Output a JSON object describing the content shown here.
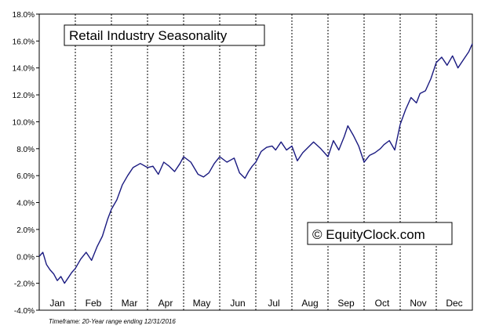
{
  "chart_data": {
    "type": "line",
    "title": "Retail Industry Seasonality",
    "watermark": "© EquityClock.com",
    "footnote": "Timeframe: 20-Year range ending 12/31/2016",
    "xlabel": "",
    "ylabel": "",
    "x_domain_months": [
      0,
      12
    ],
    "categories": [
      "Jan",
      "Feb",
      "Mar",
      "Apr",
      "May",
      "Jun",
      "Jul",
      "Aug",
      "Sep",
      "Oct",
      "Nov",
      "Dec"
    ],
    "ylim": [
      -4,
      18
    ],
    "yticks": [
      -4,
      -2,
      0,
      2,
      4,
      6,
      8,
      10,
      12,
      14,
      16,
      18
    ],
    "ytick_labels": [
      "-4.0%",
      "-2.0%",
      "0.0%",
      "2.0%",
      "4.0%",
      "6.0%",
      "8.0%",
      "10.0%",
      "12.0%",
      "14.0%",
      "16.0%",
      "18.0%"
    ],
    "grid": {
      "vertical_month_lines": true,
      "horizontal": false
    },
    "line_color": "#1a1a80",
    "series": [
      {
        "x": [
          0.0,
          0.1,
          0.2,
          0.3,
          0.4,
          0.5,
          0.6,
          0.7,
          0.8,
          0.9,
          1.0,
          1.15,
          1.3,
          1.45,
          1.6,
          1.75,
          1.9,
          2.0,
          2.15,
          2.3,
          2.45,
          2.6,
          2.8,
          3.0,
          3.15,
          3.3,
          3.45,
          3.6,
          3.75,
          3.9,
          4.0,
          4.2,
          4.4,
          4.55,
          4.7,
          4.85,
          5.0,
          5.2,
          5.4,
          5.55,
          5.7,
          5.8,
          5.9,
          6.0,
          6.15,
          6.3,
          6.45,
          6.55,
          6.7,
          6.85,
          7.0,
          7.15,
          7.3,
          7.45,
          7.6,
          7.8,
          8.0,
          8.15,
          8.3,
          8.45,
          8.55,
          8.7,
          8.85,
          9.0,
          9.15,
          9.3,
          9.45,
          9.55,
          9.7,
          9.85,
          10.0,
          10.15,
          10.3,
          10.45,
          10.55,
          10.7,
          10.85,
          11.0,
          11.15,
          11.3,
          11.45,
          11.6,
          11.75,
          11.9,
          12.0
        ],
        "values": [
          0.0,
          0.3,
          -0.6,
          -1.0,
          -1.3,
          -1.8,
          -1.5,
          -2.0,
          -1.6,
          -1.2,
          -0.9,
          -0.2,
          0.3,
          -0.3,
          0.7,
          1.5,
          2.8,
          3.5,
          4.2,
          5.3,
          6.0,
          6.6,
          6.9,
          6.6,
          6.7,
          6.1,
          7.0,
          6.7,
          6.3,
          6.9,
          7.4,
          7.0,
          6.1,
          5.9,
          6.2,
          6.9,
          7.4,
          7.0,
          7.3,
          6.2,
          5.8,
          6.3,
          6.7,
          7.0,
          7.8,
          8.1,
          8.2,
          7.9,
          8.5,
          7.9,
          8.2,
          7.1,
          7.7,
          8.1,
          8.5,
          8.0,
          7.4,
          8.6,
          7.9,
          8.9,
          9.7,
          9.0,
          8.2,
          7.0,
          7.5,
          7.7,
          8.0,
          8.3,
          8.6,
          7.9,
          9.8,
          10.9,
          11.8,
          11.4,
          12.1,
          12.3,
          13.2,
          14.4,
          14.8,
          14.2,
          14.9,
          14.0,
          14.6,
          15.2,
          15.8
        ]
      }
    ],
    "annotations": [
      "Retail Industry Seasonality",
      "© EquityClock.com"
    ]
  }
}
